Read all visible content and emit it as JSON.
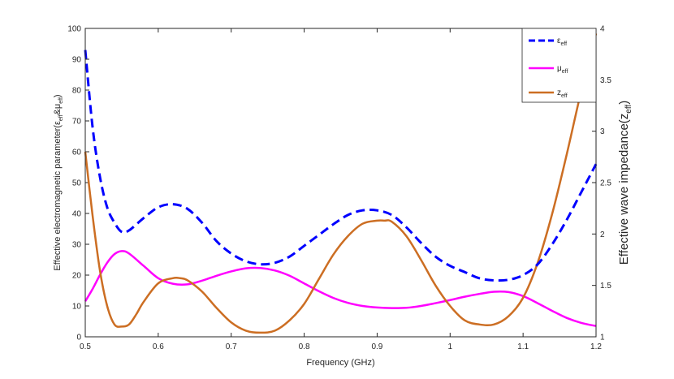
{
  "chart_data": {
    "type": "line",
    "xlabel": "Frequency (GHz)",
    "ylabel_left": {
      "prefix": "Effective electromagnetic parameter(",
      "e1": "ε",
      "s1": "eff",
      "amp": "&",
      "e2": "μ",
      "s2": "eff",
      "suffix": ")"
    },
    "ylabel_right": {
      "prefix": "Effective wave impedance(z",
      "sub": "eff",
      "suffix": ")"
    },
    "xlim": [
      0.5,
      1.2
    ],
    "ylim_left": [
      0,
      100
    ],
    "ylim_right": [
      1,
      4
    ],
    "x_ticks": [
      "0.5",
      "0.6",
      "0.7",
      "0.8",
      "0.9",
      "1",
      "1.1",
      "1.2"
    ],
    "y_left_ticks": [
      "0",
      "10",
      "20",
      "30",
      "40",
      "50",
      "60",
      "70",
      "80",
      "90",
      "100"
    ],
    "y_right_ticks": [
      "1",
      "1.5",
      "2",
      "2.5",
      "3",
      "3.5",
      "4"
    ],
    "legend_position": "top-right",
    "series": [
      {
        "key": "eps",
        "legend_base": "ε",
        "legend_sub": "eff",
        "axis": "left",
        "color": "#0000ff",
        "style": "dashed",
        "x": [
          0.5,
          0.51,
          0.52,
          0.53,
          0.54,
          0.55,
          0.56,
          0.58,
          0.6,
          0.62,
          0.64,
          0.66,
          0.68,
          0.7,
          0.72,
          0.74,
          0.76,
          0.78,
          0.8,
          0.82,
          0.84,
          0.86,
          0.88,
          0.9,
          0.92,
          0.94,
          0.96,
          0.98,
          1.0,
          1.02,
          1.04,
          1.06,
          1.08,
          1.1,
          1.12,
          1.14,
          1.16,
          1.18,
          1.2
        ],
        "y": [
          93,
          68,
          52,
          42,
          37,
          34,
          34.5,
          38.5,
          42,
          43,
          41.5,
          37,
          31,
          27,
          24.5,
          23.5,
          24,
          26,
          29.5,
          33,
          36.5,
          39.5,
          41,
          41,
          39.5,
          35.5,
          30.5,
          26,
          23,
          21,
          19,
          18.3,
          18.5,
          20,
          23.5,
          30,
          38,
          47,
          56
        ]
      },
      {
        "key": "mu",
        "legend_base": "μ",
        "legend_sub": "eff",
        "axis": "left",
        "color": "#ff00ff",
        "style": "solid",
        "x": [
          0.5,
          0.51,
          0.52,
          0.53,
          0.54,
          0.55,
          0.56,
          0.58,
          0.6,
          0.62,
          0.64,
          0.66,
          0.68,
          0.7,
          0.72,
          0.74,
          0.76,
          0.78,
          0.8,
          0.82,
          0.84,
          0.86,
          0.88,
          0.9,
          0.92,
          0.94,
          0.96,
          0.98,
          1.0,
          1.02,
          1.04,
          1.06,
          1.08,
          1.1,
          1.12,
          1.14,
          1.16,
          1.18,
          1.2
        ],
        "y": [
          11.5,
          15.5,
          20,
          24,
          26.8,
          27.8,
          27,
          23,
          19,
          17.2,
          17,
          18.2,
          19.8,
          21.2,
          22.2,
          22.3,
          21.5,
          19.8,
          17.3,
          14.8,
          12.6,
          11,
          10,
          9.5,
          9.3,
          9.4,
          10,
          10.9,
          11.9,
          13,
          13.9,
          14.6,
          14.5,
          13.2,
          10.9,
          8.4,
          6.1,
          4.5,
          3.5
        ]
      },
      {
        "key": "z",
        "legend_base": "z",
        "legend_sub": "eff",
        "axis": "right",
        "color": "#cc6e23",
        "style": "solid",
        "x": [
          0.5,
          0.51,
          0.52,
          0.53,
          0.54,
          0.55,
          0.56,
          0.57,
          0.58,
          0.6,
          0.62,
          0.63,
          0.64,
          0.66,
          0.68,
          0.7,
          0.72,
          0.74,
          0.76,
          0.78,
          0.8,
          0.82,
          0.84,
          0.86,
          0.88,
          0.9,
          0.91,
          0.92,
          0.94,
          0.96,
          0.98,
          1.0,
          1.02,
          1.04,
          1.06,
          1.08,
          1.1,
          1.12,
          1.14,
          1.16,
          1.18,
          1.2
        ],
        "y": [
          2.8,
          2.18,
          1.65,
          1.3,
          1.12,
          1.1,
          1.12,
          1.22,
          1.34,
          1.52,
          1.57,
          1.57,
          1.55,
          1.44,
          1.28,
          1.14,
          1.06,
          1.04,
          1.06,
          1.16,
          1.32,
          1.56,
          1.8,
          1.98,
          2.1,
          2.13,
          2.13,
          2.12,
          1.98,
          1.75,
          1.5,
          1.3,
          1.16,
          1.12,
          1.12,
          1.2,
          1.38,
          1.72,
          2.2,
          2.78,
          3.4,
          3.95
        ]
      }
    ]
  }
}
